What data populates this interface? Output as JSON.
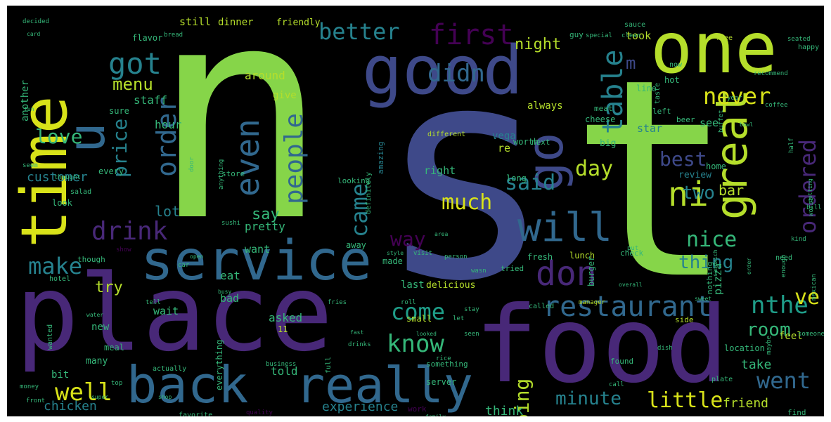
{
  "wordcloud": {
    "background": "#000000",
    "palette": {
      "lime": "#86d549",
      "lightgreen": "#b5de2b",
      "yellow": "#d8e219",
      "green": "#35b779",
      "teal": "#1f9e89",
      "blue": "#26828e",
      "steel": "#31688e",
      "indigo": "#3e4989",
      "purple": "#482878",
      "darkpurple": "#440154"
    },
    "words": [
      {
        "text": "n",
        "color": "#86d549"
      },
      {
        "text": "s",
        "color": "#3e4989"
      },
      {
        "text": "t",
        "color": "#86d549"
      },
      {
        "text": "place",
        "color": "#482878"
      },
      {
        "text": "food",
        "color": "#482878"
      },
      {
        "text": "one",
        "color": "#b5de2b"
      },
      {
        "text": "good",
        "color": "#3e4989"
      },
      {
        "text": "time",
        "color": "#d8e219"
      },
      {
        "text": "service",
        "color": "#31688e"
      },
      {
        "text": "back",
        "color": "#31688e"
      },
      {
        "text": "really",
        "color": "#31688e"
      },
      {
        "text": "u",
        "color": "#31688e"
      },
      {
        "text": "go",
        "color": "#3e4989"
      },
      {
        "text": "great",
        "color": "#b5de2b"
      },
      {
        "text": "will",
        "color": "#31688e"
      },
      {
        "text": "don",
        "color": "#482878"
      },
      {
        "text": "ni",
        "color": "#b5de2b"
      },
      {
        "text": "restaurant",
        "color": "#31688e"
      },
      {
        "text": "got",
        "color": "#26828e"
      },
      {
        "text": "even",
        "color": "#31688e"
      },
      {
        "text": "first",
        "color": "#440154"
      },
      {
        "text": "table",
        "color": "#26828e"
      },
      {
        "text": "better",
        "color": "#26828e"
      },
      {
        "text": "order",
        "color": "#31688e"
      },
      {
        "text": "didn",
        "color": "#31688e"
      },
      {
        "text": "never",
        "color": "#d8e219"
      },
      {
        "text": "ordered",
        "color": "#482878"
      },
      {
        "text": "drink",
        "color": "#482878"
      },
      {
        "text": "people",
        "color": "#31688e"
      },
      {
        "text": "came",
        "color": "#26828e"
      },
      {
        "text": "much",
        "color": "#d8e219"
      },
      {
        "text": "said",
        "color": "#26828e"
      },
      {
        "text": "day",
        "color": "#b5de2b"
      },
      {
        "text": "best",
        "color": "#3e4989"
      },
      {
        "text": "nice",
        "color": "#35b779"
      },
      {
        "text": "thing",
        "color": "#26828e"
      },
      {
        "text": "make",
        "color": "#26828e"
      },
      {
        "text": "way",
        "color": "#440154"
      },
      {
        "text": "know",
        "color": "#35b779"
      },
      {
        "text": "come",
        "color": "#1f9e89"
      },
      {
        "text": "well",
        "color": "#d8e219"
      },
      {
        "text": "nthe",
        "color": "#1f9e89"
      },
      {
        "text": "room",
        "color": "#35b779"
      },
      {
        "text": "went",
        "color": "#31688e"
      },
      {
        "text": "ve",
        "color": "#d8e219"
      },
      {
        "text": "little",
        "color": "#d8e219"
      },
      {
        "text": "minute",
        "color": "#26828e"
      },
      {
        "text": "going",
        "color": "#b5de2b"
      },
      {
        "text": "love",
        "color": "#35b779"
      },
      {
        "text": "price",
        "color": "#26828e"
      },
      {
        "text": "menu",
        "color": "#b5de2b"
      },
      {
        "text": "night",
        "color": "#b5de2b"
      },
      {
        "text": "m",
        "color": "#3e4989"
      },
      {
        "text": "two",
        "color": "#26828e"
      },
      {
        "text": "bar",
        "color": "#b5de2b"
      },
      {
        "text": "try",
        "color": "#b5de2b"
      },
      {
        "text": "say",
        "color": "#35b779"
      },
      {
        "text": "lot",
        "color": "#26828e"
      },
      {
        "text": "customer",
        "color": "#26828e"
      },
      {
        "text": "chicken",
        "color": "#26828e"
      },
      {
        "text": "experience",
        "color": "#26828e"
      },
      {
        "text": "think",
        "color": "#35b779"
      },
      {
        "text": "friend",
        "color": "#b5de2b"
      },
      {
        "text": "take",
        "color": "#35b779"
      },
      {
        "text": "told",
        "color": "#35b779"
      },
      {
        "text": "asked",
        "color": "#35b779"
      },
      {
        "text": "staff",
        "color": "#35b779"
      },
      {
        "text": "hour",
        "color": "#35b779"
      },
      {
        "text": "around",
        "color": "#b5de2b"
      },
      {
        "text": "give",
        "color": "#b5de2b"
      },
      {
        "text": "still",
        "color": "#b5de2b"
      },
      {
        "text": "dinner",
        "color": "#b5de2b"
      },
      {
        "text": "friendly",
        "color": "#b5de2b"
      },
      {
        "text": "took",
        "color": "#b5de2b"
      },
      {
        "text": "star",
        "color": "#26828e"
      },
      {
        "text": "see",
        "color": "#35b779"
      },
      {
        "text": "pretty",
        "color": "#35b779"
      },
      {
        "text": "want",
        "color": "#35b779"
      },
      {
        "text": "eat",
        "color": "#35b779"
      },
      {
        "text": "wait",
        "color": "#35b779"
      },
      {
        "text": "bad",
        "color": "#35b779"
      },
      {
        "text": "new",
        "color": "#35b779"
      },
      {
        "text": "right",
        "color": "#35b779"
      },
      {
        "text": "re",
        "color": "#b5de2b"
      },
      {
        "text": "vega",
        "color": "#26828e"
      },
      {
        "text": "always",
        "color": "#b5de2b"
      },
      {
        "text": "another",
        "color": "#35b779"
      },
      {
        "text": "sure",
        "color": "#35b779"
      },
      {
        "text": "look",
        "color": "#35b779"
      },
      {
        "text": "every",
        "color": "#35b779"
      },
      {
        "text": "bit",
        "color": "#35b779"
      },
      {
        "text": "many",
        "color": "#35b779"
      },
      {
        "text": "meal",
        "color": "#35b779"
      },
      {
        "text": "11",
        "color": "#b5de2b"
      },
      {
        "text": "everything",
        "color": "#35b779"
      },
      {
        "text": "last",
        "color": "#35b779"
      },
      {
        "text": "delicious",
        "color": "#b5de2b"
      },
      {
        "text": "made",
        "color": "#35b779"
      },
      {
        "text": "small",
        "color": "#b5de2b"
      },
      {
        "text": "server",
        "color": "#35b779"
      },
      {
        "text": "long",
        "color": "#35b779"
      },
      {
        "text": "amazing",
        "color": "#26828e"
      },
      {
        "text": "worth",
        "color": "#35b779"
      },
      {
        "text": "cheese",
        "color": "#35b779"
      },
      {
        "text": "meat",
        "color": "#35b779"
      },
      {
        "text": "next",
        "color": "#35b779"
      },
      {
        "text": "big",
        "color": "#35b779"
      },
      {
        "text": "pizza",
        "color": "#35b779"
      },
      {
        "text": "lunch",
        "color": "#b5de2b"
      },
      {
        "text": "fresh",
        "color": "#35b779"
      },
      {
        "text": "check",
        "color": "#35b779"
      },
      {
        "text": "burger",
        "color": "#35b779"
      },
      {
        "text": "tried",
        "color": "#35b779"
      },
      {
        "text": "review",
        "color": "#26828e"
      },
      {
        "text": "home",
        "color": "#35b779"
      },
      {
        "text": "location",
        "color": "#35b779"
      },
      {
        "text": "feel",
        "color": "#b5de2b"
      },
      {
        "text": "side",
        "color": "#b5de2b"
      },
      {
        "text": "nothing",
        "color": "#35b779"
      },
      {
        "text": "something",
        "color": "#35b779"
      },
      {
        "text": "definitely",
        "color": "#35b779"
      },
      {
        "text": "looking",
        "color": "#35b779"
      },
      {
        "text": "probably",
        "color": "#35b779"
      },
      {
        "text": "favorite",
        "color": "#35b779"
      },
      {
        "text": "quality",
        "color": "#440154"
      },
      {
        "text": "work",
        "color": "#440154"
      },
      {
        "text": "find",
        "color": "#35b779"
      },
      {
        "text": "hot",
        "color": "#35b779"
      },
      {
        "text": "line",
        "color": "#35b779"
      },
      {
        "text": "left",
        "color": "#35b779"
      },
      {
        "text": "now",
        "color": "#35b779"
      },
      {
        "text": "taste",
        "color": "#35b779"
      },
      {
        "text": "beer",
        "color": "#35b779"
      },
      {
        "text": "need",
        "color": "#35b779"
      },
      {
        "text": "year",
        "color": "#35b779"
      },
      {
        "text": "recommend",
        "color": "#35b779"
      },
      {
        "text": "guy",
        "color": "#35b779"
      },
      {
        "text": "special",
        "color": "#35b779"
      },
      {
        "text": "clean",
        "color": "#35b779"
      },
      {
        "text": "flavor",
        "color": "#35b779"
      },
      {
        "text": "bread",
        "color": "#35b779"
      },
      {
        "text": "decided",
        "color": "#35b779"
      },
      {
        "text": "free",
        "color": "#b5de2b"
      },
      {
        "text": "happy",
        "color": "#35b779"
      },
      {
        "text": "sauce",
        "color": "#35b779"
      },
      {
        "text": "salad",
        "color": "#35b779"
      },
      {
        "text": "different",
        "color": "#b5de2b"
      },
      {
        "text": "enough",
        "color": "#35b779"
      },
      {
        "text": "hotel",
        "color": "#35b779"
      },
      {
        "text": "though",
        "color": "#35b779"
      },
      {
        "text": "away",
        "color": "#35b779"
      },
      {
        "text": "manager",
        "color": "#b5de2b"
      },
      {
        "text": "called",
        "color": "#35b779"
      },
      {
        "text": "plate",
        "color": "#35b779"
      },
      {
        "text": "found",
        "color": "#35b779"
      },
      {
        "text": "maybe",
        "color": "#35b779"
      },
      {
        "text": "business",
        "color": "#35b779"
      },
      {
        "text": "full",
        "color": "#35b779"
      },
      {
        "text": "actually",
        "color": "#35b779"
      },
      {
        "text": "wanted",
        "color": "#35b779"
      },
      {
        "text": "store",
        "color": "#35b779"
      },
      {
        "text": "thought",
        "color": "#35b779"
      },
      {
        "text": "sandwich",
        "color": "#35b779"
      },
      {
        "text": "getting",
        "color": "#35b779"
      },
      {
        "text": "stay",
        "color": "#35b779"
      },
      {
        "text": "order",
        "color": "#35b779"
      },
      {
        "text": "sushi",
        "color": "#35b779"
      },
      {
        "text": "drinks",
        "color": "#35b779"
      },
      {
        "text": "kind",
        "color": "#35b779"
      },
      {
        "text": "visit",
        "color": "#35b779"
      },
      {
        "text": "buffet",
        "color": "#35b779"
      },
      {
        "text": "anything",
        "color": "#35b779"
      },
      {
        "text": "seated",
        "color": "#35b779"
      },
      {
        "text": "worst",
        "color": "#35b779"
      },
      {
        "text": "fries",
        "color": "#35b779"
      },
      {
        "text": "top",
        "color": "#35b779"
      },
      {
        "text": "money",
        "color": "#35b779"
      },
      {
        "text": "front",
        "color": "#35b779"
      },
      {
        "text": "call",
        "color": "#35b779"
      },
      {
        "text": "half",
        "color": "#35b779"
      },
      {
        "text": "someone",
        "color": "#35b779"
      },
      {
        "text": "seem",
        "color": "#35b779"
      },
      {
        "text": "door",
        "color": "#35b779"
      },
      {
        "text": "dish",
        "color": "#35b779"
      },
      {
        "text": "show",
        "color": "#440154"
      },
      {
        "text": "mexican",
        "color": "#35b779"
      },
      {
        "text": "wasn",
        "color": "#35b779"
      },
      {
        "text": "let",
        "color": "#35b779"
      },
      {
        "text": "put",
        "color": "#35b779"
      },
      {
        "text": "car",
        "color": "#35b779"
      },
      {
        "text": "tell",
        "color": "#35b779"
      },
      {
        "text": "bill",
        "color": "#35b779"
      },
      {
        "text": "looked",
        "color": "#35b779"
      },
      {
        "text": "fast",
        "color": "#35b779"
      },
      {
        "text": "area",
        "color": "#35b779"
      },
      {
        "text": "water",
        "color": "#35b779"
      },
      {
        "text": "card",
        "color": "#35b779"
      },
      {
        "text": "bowl",
        "color": "#35b779"
      },
      {
        "text": "coffee",
        "color": "#35b779"
      },
      {
        "text": "sweet",
        "color": "#35b779"
      },
      {
        "text": "person",
        "color": "#35b779"
      },
      {
        "text": "overall",
        "color": "#35b779"
      },
      {
        "text": "seen",
        "color": "#35b779"
      },
      {
        "text": "rice",
        "color": "#35b779"
      },
      {
        "text": "style",
        "color": "#35b779"
      },
      {
        "text": "roll",
        "color": "#35b779"
      },
      {
        "text": "cold",
        "color": "#35b779"
      },
      {
        "text": "fun",
        "color": "#35b779"
      },
      {
        "text": "open",
        "color": "#35b779"
      },
      {
        "text": "busy",
        "color": "#35b779"
      },
      {
        "text": "super",
        "color": "#35b779"
      },
      {
        "text": "shop",
        "color": "#35b779"
      },
      {
        "text": "family",
        "color": "#35b779"
      }
    ]
  }
}
